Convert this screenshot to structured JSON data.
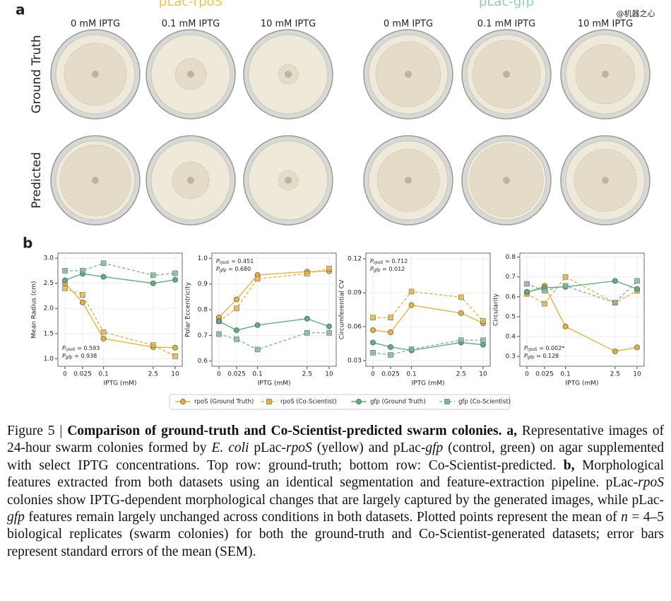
{
  "panel_a": {
    "label": "a",
    "watermark": "@机器之心",
    "groups": [
      {
        "title": "pLac-rpoS",
        "color": "#f1c24a",
        "columns": [
          "0 mM IPTG",
          "0.1 mM IPTG",
          "10 mM IPTG"
        ]
      },
      {
        "title": "pLac-gfp",
        "color": "#8fd3a4",
        "columns": [
          "0 mM IPTG",
          "0.1 mM IPTG",
          "10 mM IPTG"
        ]
      }
    ],
    "rows": [
      "Ground Truth",
      "Predicted"
    ]
  },
  "panel_b": {
    "label": "b"
  },
  "chart_data": [
    {
      "type": "line",
      "ylabel": "Mean Radius (cm)",
      "xlabel": "IPTG (mM)",
      "grid": true,
      "categories": [
        "0",
        "0.025",
        "0.1",
        "2.5",
        "10"
      ],
      "ylim": [
        0.85,
        3.1
      ],
      "yticks": [
        {
          "value": 1,
          "label": "1.0"
        },
        1.5,
        {
          "value": 2,
          "label": "2.0"
        },
        2.5,
        {
          "value": 3,
          "label": "3.0"
        }
      ],
      "annotation_position": "lower left",
      "annotation": [
        {
          "symbol": "P",
          "sub": "rpoS",
          "text": " = 0.593"
        },
        {
          "symbol": "P",
          "sub": "gfp",
          "text": " = 0.938"
        }
      ],
      "series": [
        {
          "name": "rpoS (Ground Truth)",
          "color": "#e5b23c",
          "marker": "circle",
          "linestyle": "solid",
          "values": [
            2.5,
            2.12,
            1.4,
            1.23,
            1.22
          ]
        },
        {
          "name": "rpoS (Co-Scientist)",
          "color": "#e5b23c",
          "marker": "square",
          "linestyle": "dashed",
          "values": [
            2.4,
            2.27,
            1.53,
            1.27,
            1.05
          ]
        },
        {
          "name": "gfp (Ground Truth)",
          "color": "#5fae7c",
          "marker": "circle",
          "linestyle": "solid",
          "values": [
            2.56,
            2.69,
            2.63,
            2.5,
            2.57
          ]
        },
        {
          "name": "gfp (Co-Scientist)",
          "color": "#7db59a",
          "marker": "square",
          "linestyle": "dashed",
          "values": [
            2.75,
            2.75,
            2.9,
            2.66,
            2.7
          ]
        }
      ]
    },
    {
      "type": "line",
      "ylabel": "Polar Eccentricity",
      "xlabel": "IPTG (mM)",
      "grid": true,
      "categories": [
        "0",
        "0.025",
        "0.1",
        "2.5",
        "10"
      ],
      "ylim": [
        0.58,
        1.02
      ],
      "yticks": [
        0.6,
        0.7,
        0.8,
        0.9,
        {
          "value": 1,
          "label": "1.0"
        }
      ],
      "annotation_position": "upper left",
      "annotation": [
        {
          "symbol": "P",
          "sub": "rpoS",
          "text": " = 0.451"
        },
        {
          "symbol": "P",
          "sub": "gfp",
          "text": " = 0.680"
        }
      ],
      "series": [
        {
          "name": "rpoS (Ground Truth)",
          "color": "#e5b23c",
          "marker": "circle",
          "linestyle": "solid",
          "values": [
            0.77,
            0.84,
            0.935,
            0.948,
            0.95
          ]
        },
        {
          "name": "rpoS (Co-Scientist)",
          "color": "#e5b23c",
          "marker": "square",
          "linestyle": "dashed",
          "values": [
            0.755,
            0.805,
            0.92,
            0.94,
            0.96
          ]
        },
        {
          "name": "gfp (Ground Truth)",
          "color": "#5fae7c",
          "marker": "circle",
          "linestyle": "solid",
          "values": [
            0.755,
            0.72,
            0.74,
            0.765,
            0.735
          ]
        },
        {
          "name": "gfp (Co-Scientist)",
          "color": "#7db59a",
          "marker": "square",
          "linestyle": "dashed",
          "values": [
            0.705,
            0.685,
            0.645,
            0.71,
            0.71
          ]
        }
      ]
    },
    {
      "type": "line",
      "ylabel": "Circumferential CV",
      "xlabel": "IPTG (mM)",
      "grid": true,
      "categories": [
        "0",
        "0.025",
        "0.1",
        "2.5",
        "10"
      ],
      "ylim": [
        0.025,
        0.125
      ],
      "yticks": [
        0.03,
        0.06,
        0.09,
        0.12
      ],
      "annotation_position": "upper left",
      "annotation": [
        {
          "symbol": "P",
          "sub": "rpoS",
          "text": " = 0.712"
        },
        {
          "symbol": "P",
          "sub": "gfp",
          "text": " = 0.012"
        }
      ],
      "series": [
        {
          "name": "rpoS (Ground Truth)",
          "color": "#e5b23c",
          "marker": "circle",
          "linestyle": "solid",
          "values": [
            0.057,
            0.055,
            0.079,
            0.072,
            0.063
          ]
        },
        {
          "name": "rpoS (Co-Scientist)",
          "color": "#e5b23c",
          "marker": "square",
          "linestyle": "dashed",
          "values": [
            0.068,
            0.068,
            0.091,
            0.086,
            0.065
          ]
        },
        {
          "name": "gfp (Ground Truth)",
          "color": "#5fae7c",
          "marker": "circle",
          "linestyle": "solid",
          "values": [
            0.046,
            0.042,
            0.039,
            0.046,
            0.044
          ]
        },
        {
          "name": "gfp (Co-Scientist)",
          "color": "#7db59a",
          "marker": "square",
          "linestyle": "dashed",
          "values": [
            0.037,
            0.035,
            0.04,
            0.048,
            0.048
          ]
        }
      ]
    },
    {
      "type": "line",
      "ylabel": "Circularity",
      "xlabel": "IPTG (mM)",
      "grid": true,
      "categories": [
        "0",
        "0.025",
        "0.1",
        "2.5",
        "10"
      ],
      "ylim": [
        0.25,
        0.82
      ],
      "yticks": [
        0.3,
        0.4,
        0.5,
        0.6,
        0.7,
        0.8
      ],
      "annotation_position": "lower left",
      "annotation": [
        {
          "symbol": "P",
          "sub": "rpoS",
          "text": " = 0.002*"
        },
        {
          "symbol": "P",
          "sub": "gfp",
          "text": " = 0.128"
        }
      ],
      "series": [
        {
          "name": "rpoS (Ground Truth)",
          "color": "#e5b23c",
          "marker": "circle",
          "linestyle": "solid",
          "values": [
            0.62,
            0.655,
            0.45,
            0.325,
            0.345
          ]
        },
        {
          "name": "rpoS (Co-Scientist)",
          "color": "#e5b23c",
          "marker": "square",
          "linestyle": "dashed",
          "values": [
            0.615,
            0.565,
            0.7,
            0.57,
            0.63
          ]
        },
        {
          "name": "gfp (Ground Truth)",
          "color": "#5fae7c",
          "marker": "circle",
          "linestyle": "solid",
          "values": [
            0.625,
            0.645,
            0.65,
            0.68,
            0.64
          ]
        },
        {
          "name": "gfp (Co-Scientist)",
          "color": "#7db59a",
          "marker": "square",
          "linestyle": "dashed",
          "values": [
            0.665,
            0.63,
            0.655,
            0.57,
            0.68
          ]
        }
      ]
    }
  ],
  "caption": [
    {
      "text": "Figure 5 | ",
      "style": "plain"
    },
    {
      "text": "Comparison of ground-truth and Co-Scientist-predicted swarm colonies.",
      "style": "bold"
    },
    {
      "text": " ",
      "style": "plain"
    },
    {
      "text": "a,",
      "style": "bold"
    },
    {
      "text": " Representative images of 24-hour swarm colonies formed by ",
      "style": "plain"
    },
    {
      "text": "E. coli",
      "style": "italic"
    },
    {
      "text": " pLac-",
      "style": "plain"
    },
    {
      "text": "rpoS",
      "style": "italic"
    },
    {
      "text": " (yellow) and pLac-",
      "style": "plain"
    },
    {
      "text": "gfp",
      "style": "italic"
    },
    {
      "text": " (control, green) on agar supplemented with select IPTG concentrations. Top row: ground-truth; bottom row: Co-Scientist-predicted. ",
      "style": "plain"
    },
    {
      "text": "b,",
      "style": "bold"
    },
    {
      "text": " Morphological features extracted from both datasets using an identical segmentation and feature-extraction pipeline. pLac-",
      "style": "plain"
    },
    {
      "text": "rpoS",
      "style": "italic"
    },
    {
      "text": " colonies show IPTG-dependent morphological changes that are largely captured by the generated images, while pLac-",
      "style": "plain"
    },
    {
      "text": "gfp",
      "style": "italic"
    },
    {
      "text": " features remain largely unchanged across conditions in both datasets. Plotted points represent the mean of ",
      "style": "plain"
    },
    {
      "text": "n",
      "style": "italic"
    },
    {
      "text": " = 4–5 biological replicates (swarm colonies) for both the ground-truth and Co-Scientist-generated datasets; error bars represent standard errors of the mean (SEM).",
      "style": "plain"
    }
  ]
}
